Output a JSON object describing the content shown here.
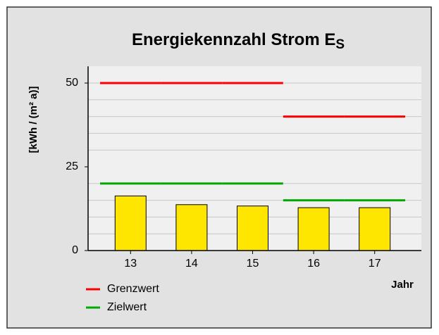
{
  "chart_data": {
    "type": "bar",
    "title": "Energiekennzahl Strom E",
    "title_subscript": "S",
    "y_label": "[kWh / (m² a)]",
    "x_label": "Jahr",
    "categories": [
      "13",
      "14",
      "15",
      "16",
      "17"
    ],
    "values": [
      16.3,
      13.7,
      13.3,
      12.8,
      12.8
    ],
    "color": "#ffe600",
    "ylim": [
      0,
      55
    ],
    "yticks": [
      0,
      25,
      50
    ],
    "minor_grid": [
      5,
      10,
      15,
      20,
      30,
      35,
      40,
      45,
      50
    ],
    "grid": true,
    "legend_position": "bottom-left",
    "lines": [
      {
        "name": "Grenzwert",
        "color": "#ff0000",
        "values": [
          50,
          50,
          50,
          40,
          40
        ]
      },
      {
        "name": "Zielwert",
        "color": "#00aa00",
        "values": [
          20,
          20,
          20,
          15,
          15
        ]
      }
    ]
  }
}
